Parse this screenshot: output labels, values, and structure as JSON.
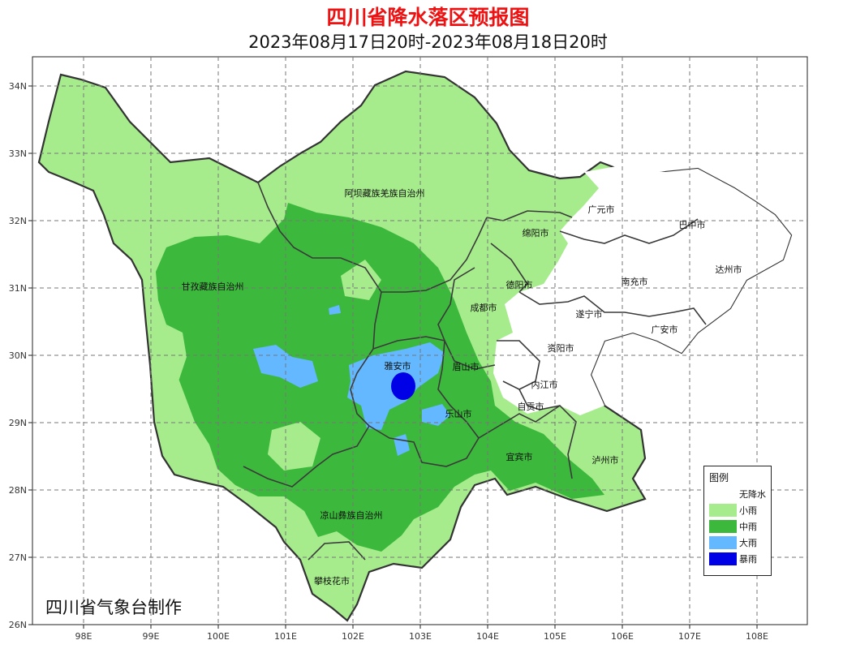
{
  "title": "四川省降水落区预报图",
  "subtitle": "2023年08月17日20时-2023年08月18日20时",
  "credit": "四川省气象台制作",
  "axes": {
    "lon_ticks": [
      "98E",
      "99E",
      "100E",
      "101E",
      "102E",
      "103E",
      "104E",
      "105E",
      "106E",
      "107E",
      "108E"
    ],
    "lat_ticks": [
      "34N",
      "33N",
      "32N",
      "31N",
      "30N",
      "29N",
      "28N",
      "27N",
      "26N"
    ]
  },
  "cities": [
    "阿坝藏族羌族自治州",
    "甘孜藏族自治州",
    "凉山彝族自治州",
    "攀枝花市",
    "雅安市",
    "成都市",
    "德阳市",
    "绵阳市",
    "广元市",
    "巴中市",
    "南充市",
    "达州市",
    "遂宁市",
    "广安市",
    "资阳市",
    "眉山市",
    "乐山市",
    "内江市",
    "自贡市",
    "宜宾市",
    "泸州市"
  ],
  "legend": {
    "title": "图例",
    "items": [
      {
        "label": "无降水",
        "color": "#ffffff"
      },
      {
        "label": "小雨",
        "color": "#a6ec8c"
      },
      {
        "label": "中雨",
        "color": "#3cb93c"
      },
      {
        "label": "大雨",
        "color": "#63b8ff"
      },
      {
        "label": "暴雨",
        "color": "#0000e6"
      }
    ]
  },
  "colors": {
    "no_rain": "#ffffff",
    "light": "#a6ec8c",
    "moderate": "#3cb93c",
    "heavy": "#63b8ff",
    "storm": "#0000e6",
    "border": "#333333",
    "grid": "#777777"
  }
}
